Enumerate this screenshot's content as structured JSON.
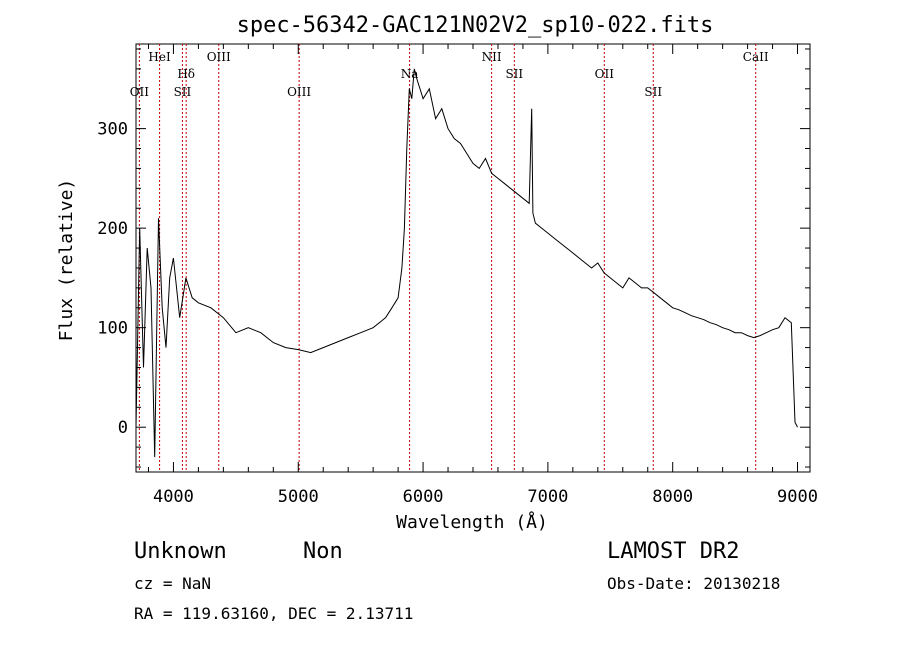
{
  "chart_data": {
    "type": "line",
    "title": "spec-56342-GAC121N02V2_sp10-022.fits",
    "xlabel": "Wavelength (Å)",
    "ylabel": "Flux (relative)",
    "xlim": [
      3700,
      9100
    ],
    "ylim": [
      -45,
      385
    ],
    "xticks": [
      4000,
      5000,
      6000,
      7000,
      8000,
      9000
    ],
    "yticks": [
      0,
      100,
      200,
      300
    ],
    "grid": false,
    "line_color": "#000000",
    "marker_color": "#c00000",
    "series": [
      {
        "x": [
          3700,
          3730,
          3760,
          3790,
          3820,
          3850,
          3880,
          3910,
          3940,
          3970,
          4000,
          4050,
          4100,
          4150,
          4200,
          4300,
          4400,
          4500,
          4600,
          4700,
          4800,
          4900,
          5000,
          5100,
          5200,
          5300,
          5400,
          5500,
          5600,
          5700,
          5750,
          5800,
          5830,
          5850,
          5870,
          5890,
          5910,
          5930,
          5950,
          6000,
          6050,
          6100,
          6150,
          6200,
          6250,
          6300,
          6350,
          6400,
          6450,
          6500,
          6550,
          6600,
          6650,
          6700,
          6750,
          6800,
          6850,
          6870,
          6880,
          6900,
          6950,
          7000,
          7050,
          7100,
          7150,
          7200,
          7250,
          7300,
          7350,
          7400,
          7450,
          7500,
          7550,
          7600,
          7650,
          7700,
          7750,
          7800,
          7850,
          7900,
          7950,
          8000,
          8050,
          8100,
          8150,
          8200,
          8250,
          8300,
          8350,
          8400,
          8450,
          8500,
          8550,
          8600,
          8650,
          8700,
          8750,
          8800,
          8850,
          8900,
          8950,
          8980,
          9000
        ],
        "y": [
          0,
          200,
          60,
          180,
          140,
          -30,
          210,
          120,
          80,
          150,
          170,
          110,
          150,
          130,
          125,
          120,
          110,
          95,
          100,
          95,
          85,
          80,
          78,
          75,
          80,
          85,
          90,
          95,
          100,
          110,
          120,
          130,
          160,
          200,
          280,
          340,
          330,
          360,
          350,
          330,
          340,
          310,
          320,
          300,
          290,
          285,
          275,
          265,
          260,
          270,
          255,
          250,
          245,
          240,
          235,
          230,
          225,
          320,
          215,
          205,
          200,
          195,
          190,
          185,
          180,
          175,
          170,
          165,
          160,
          165,
          155,
          150,
          145,
          140,
          150,
          145,
          140,
          140,
          135,
          130,
          125,
          120,
          118,
          115,
          112,
          110,
          108,
          105,
          103,
          100,
          98,
          95,
          95,
          92,
          90,
          92,
          95,
          98,
          100,
          110,
          105,
          5,
          0
        ]
      }
    ],
    "lines": [
      {
        "label": "OII",
        "wavelength": 3727,
        "row": 3
      },
      {
        "label": "HeI",
        "wavelength": 3889,
        "row": 1
      },
      {
        "label": "Hδ",
        "wavelength": 4102,
        "row": 2
      },
      {
        "label": "SII",
        "wavelength": 4072,
        "row": 3
      },
      {
        "label": "OIII",
        "wavelength": 4363,
        "row": 1
      },
      {
        "label": "OIII",
        "wavelength": 5007,
        "row": 3
      },
      {
        "label": "Na",
        "wavelength": 5892,
        "row": 2
      },
      {
        "label": "NII",
        "wavelength": 6549,
        "row": 1
      },
      {
        "label": "SII",
        "wavelength": 6731,
        "row": 2
      },
      {
        "label": "OII",
        "wavelength": 7452,
        "row": 2
      },
      {
        "label": "SII",
        "wavelength": 7844,
        "row": 3
      },
      {
        "label": "CaII",
        "wavelength": 8665,
        "row": 1
      }
    ]
  },
  "footer": {
    "class_label": "Unknown",
    "subclass_label": "Non",
    "survey_label": "LAMOST DR2",
    "cz_text": "cz = NaN",
    "obs_date_text": "Obs-Date: 20130218",
    "radec_text": "RA = 119.63160, DEC =   2.13711"
  }
}
